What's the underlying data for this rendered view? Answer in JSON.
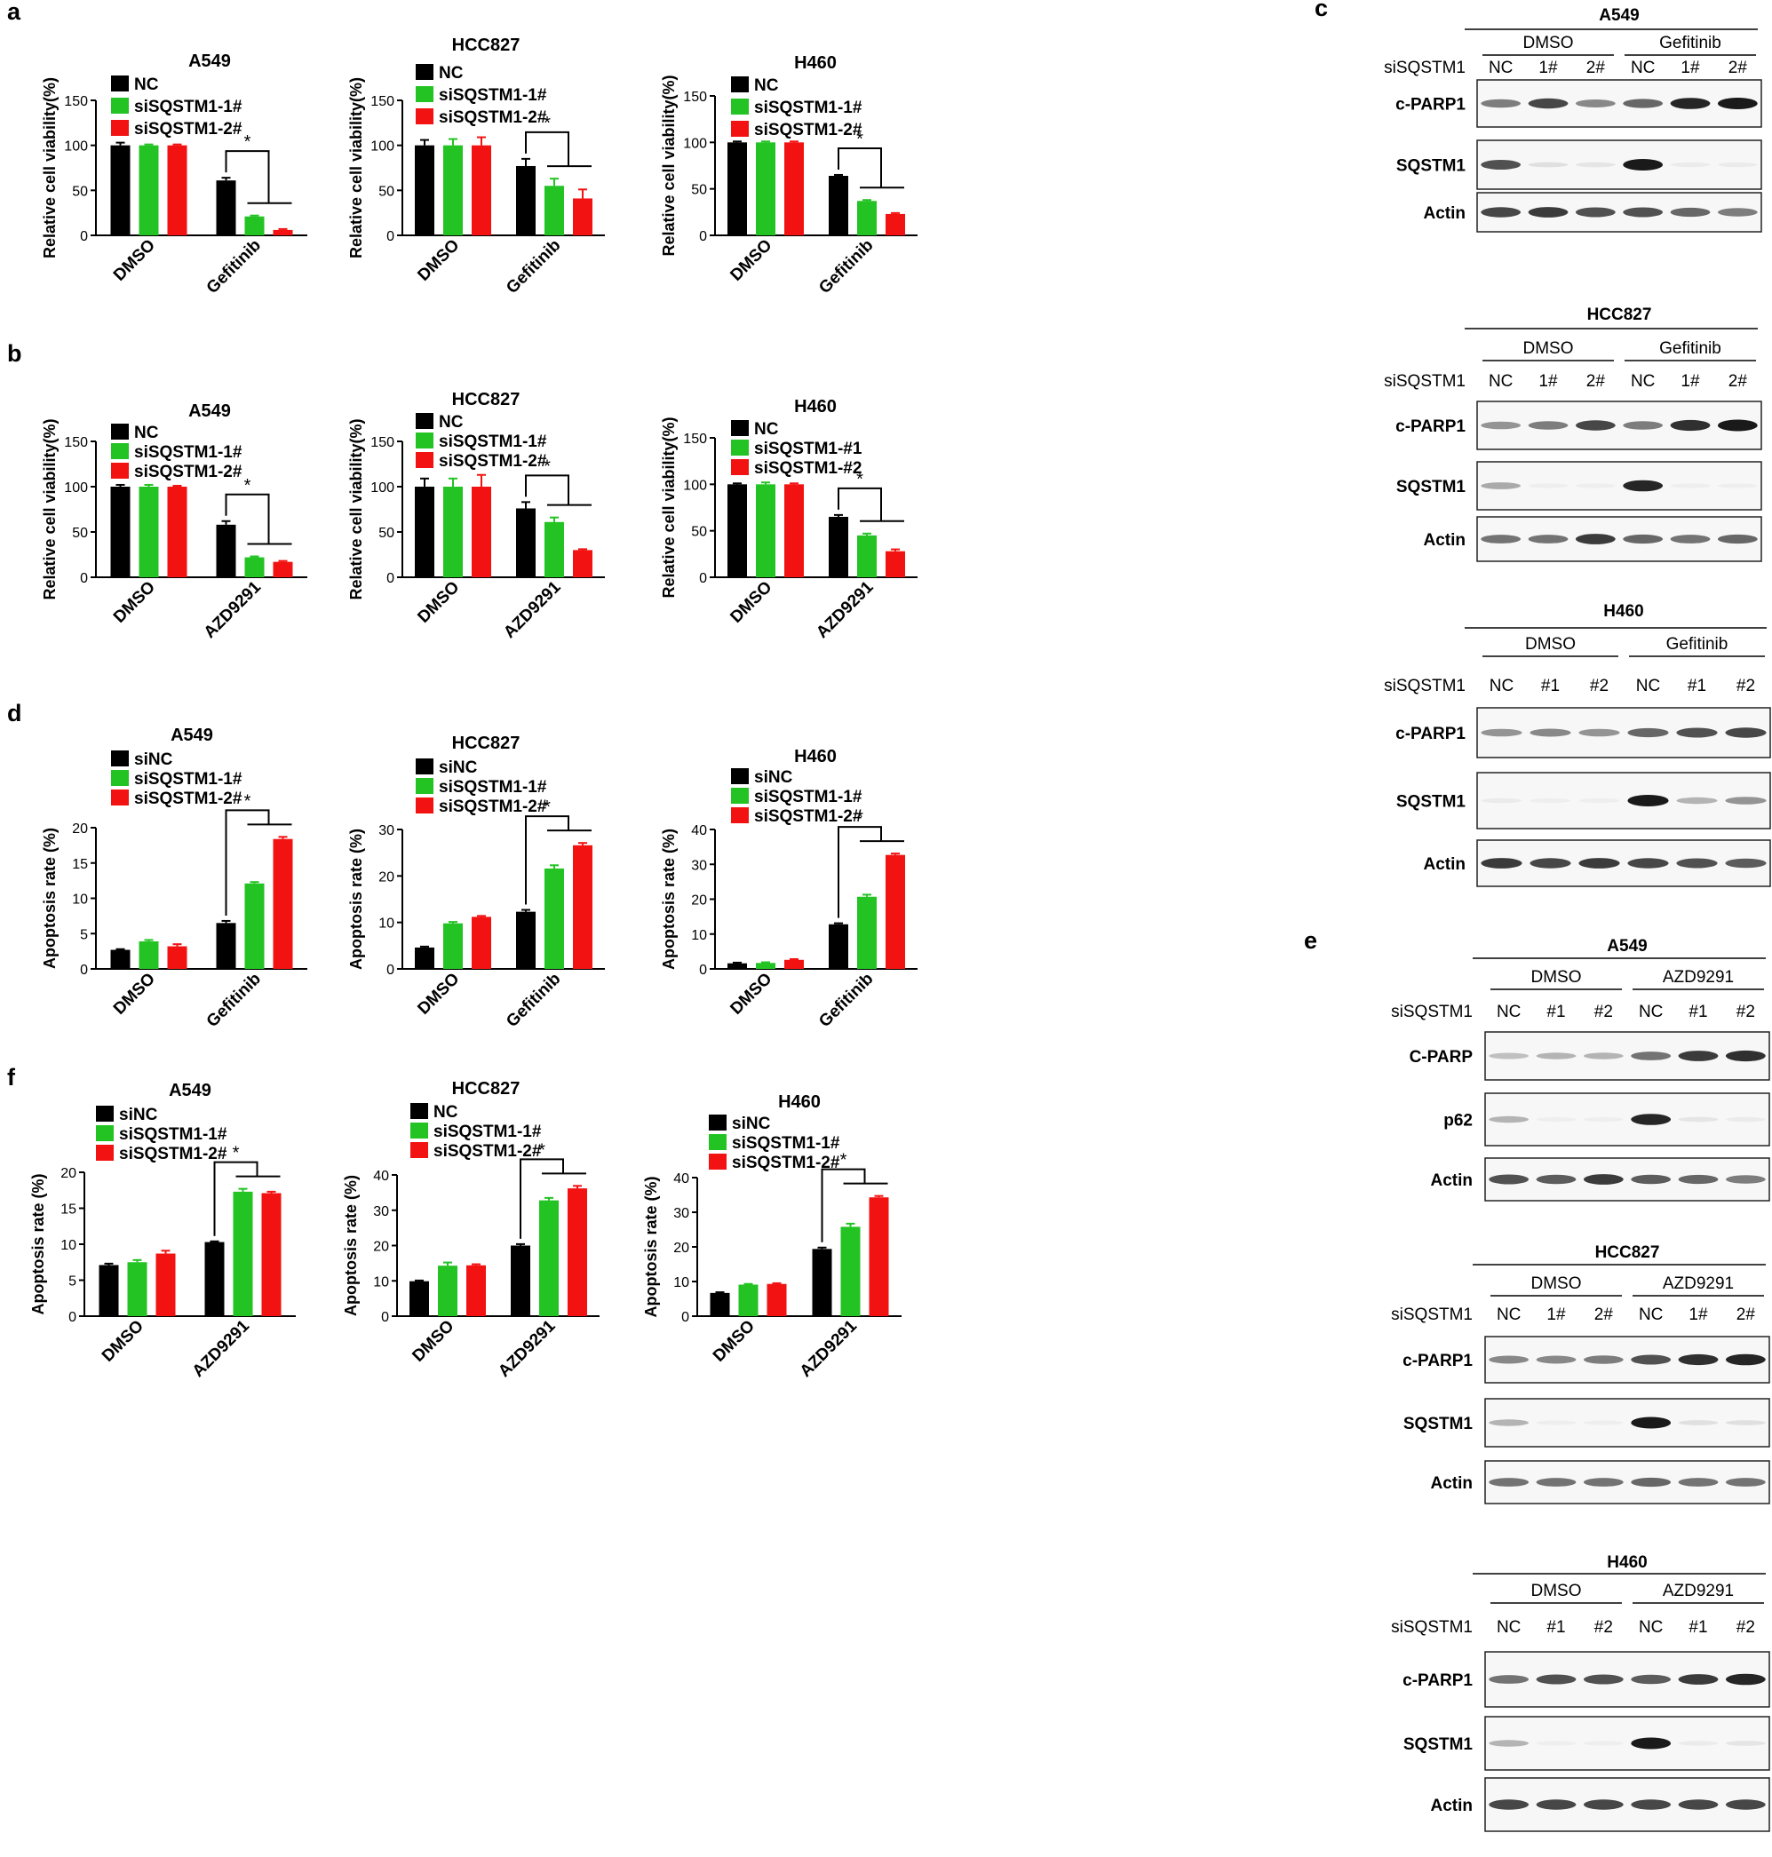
{
  "colors": {
    "black": "#000000",
    "green": "#22C322",
    "red": "#F21212",
    "blot_bg": "#F7F7F7",
    "blot_band": "#1A1A1A"
  },
  "chart_data": [
    {
      "panel": "a",
      "type": "bar",
      "title": "A549",
      "ylabel": "Relative cell viability(%)",
      "ylim": [
        0,
        150
      ],
      "yticks": [
        0,
        50,
        100,
        150
      ],
      "categories": [
        "DMSO",
        "Gefitinib"
      ],
      "series": [
        {
          "name": "NC",
          "values": [
            100,
            61
          ],
          "errors": [
            3,
            3
          ]
        },
        {
          "name": "siSQSTM1-1#",
          "values": [
            100,
            21
          ],
          "errors": [
            1,
            1
          ]
        },
        {
          "name": "siSQSTM1-2#",
          "values": [
            100,
            6
          ],
          "errors": [
            1,
            1
          ]
        }
      ],
      "annotation": "*"
    },
    {
      "panel": "",
      "type": "bar",
      "title": "HCC827",
      "ylabel": "Relative cell viability(%)",
      "ylim": [
        0,
        150
      ],
      "yticks": [
        0,
        50,
        100,
        150
      ],
      "categories": [
        "DMSO",
        "Gefitinib"
      ],
      "series": [
        {
          "name": "NC",
          "values": [
            100,
            77
          ],
          "errors": [
            6,
            8
          ]
        },
        {
          "name": "siSQSTM1-1#",
          "values": [
            100,
            55
          ],
          "errors": [
            7,
            8
          ]
        },
        {
          "name": "siSQSTM1-2#",
          "values": [
            100,
            41
          ],
          "errors": [
            9,
            10
          ]
        }
      ],
      "annotation": "*"
    },
    {
      "panel": "",
      "type": "bar",
      "title": "H460",
      "ylabel": "Relative cell viability(%)",
      "ylim": [
        0,
        150
      ],
      "yticks": [
        0,
        50,
        100,
        150
      ],
      "categories": [
        "DMSO",
        "Gefitinib"
      ],
      "series": [
        {
          "name": "NC",
          "values": [
            100,
            64
          ],
          "errors": [
            1,
            1
          ]
        },
        {
          "name": "siSQSTM1-1#",
          "values": [
            100,
            37
          ],
          "errors": [
            1,
            1
          ]
        },
        {
          "name": "siSQSTM1-2#",
          "values": [
            100,
            23
          ],
          "errors": [
            1,
            1
          ]
        }
      ],
      "annotation": "*"
    },
    {
      "panel": "b",
      "type": "bar",
      "title": "A549",
      "ylabel": "Relative cell viability(%)",
      "ylim": [
        0,
        150
      ],
      "yticks": [
        0,
        50,
        100,
        150
      ],
      "categories": [
        "DMSO",
        "AZD9291"
      ],
      "series": [
        {
          "name": "NC",
          "values": [
            100,
            58
          ],
          "errors": [
            2,
            4
          ]
        },
        {
          "name": "siSQSTM1-1#",
          "values": [
            100,
            22
          ],
          "errors": [
            2,
            1
          ]
        },
        {
          "name": "siSQSTM1-2#",
          "values": [
            100,
            17
          ],
          "errors": [
            1,
            1
          ]
        }
      ],
      "annotation": "*"
    },
    {
      "panel": "",
      "type": "bar",
      "title": "HCC827",
      "ylabel": "Relative cell viability(%)",
      "ylim": [
        0,
        150
      ],
      "yticks": [
        0,
        50,
        100,
        150
      ],
      "categories": [
        "DMSO",
        "AZD9291"
      ],
      "series": [
        {
          "name": "NC",
          "values": [
            100,
            76
          ],
          "errors": [
            9,
            7
          ]
        },
        {
          "name": "siSQSTM1-1#",
          "values": [
            100,
            61
          ],
          "errors": [
            9,
            5
          ]
        },
        {
          "name": "siSQSTM1-2#",
          "values": [
            100,
            30
          ],
          "errors": [
            13,
            1
          ]
        }
      ],
      "annotation": "*"
    },
    {
      "panel": "",
      "type": "bar",
      "title": "H460",
      "ylabel": "Relative cell viability(%)",
      "ylim": [
        0,
        150
      ],
      "yticks": [
        0,
        50,
        100,
        150
      ],
      "categories": [
        "DMSO",
        "AZD9291"
      ],
      "series": [
        {
          "name": "NC",
          "values": [
            100,
            65
          ],
          "errors": [
            1,
            2
          ]
        },
        {
          "name": "siSQSTM1-#1",
          "values": [
            100,
            45
          ],
          "errors": [
            2,
            2
          ]
        },
        {
          "name": "siSQSTM1-#2",
          "values": [
            100,
            28
          ],
          "errors": [
            1,
            2
          ]
        }
      ],
      "annotation": "*"
    },
    {
      "panel": "d",
      "type": "bar",
      "title": "A549",
      "ylabel": "Apoptosis rate (%)",
      "ylim": [
        0,
        20
      ],
      "yticks": [
        0,
        5,
        10,
        15,
        20
      ],
      "categories": [
        "DMSO",
        "Gefitinib"
      ],
      "series": [
        {
          "name": "siNC",
          "values": [
            2.7,
            6.5
          ],
          "errors": [
            0.1,
            0.3
          ]
        },
        {
          "name": "siSQSTM1-1#",
          "values": [
            3.9,
            12.1
          ],
          "errors": [
            0.2,
            0.2
          ]
        },
        {
          "name": "siSQSTM1-2#",
          "values": [
            3.2,
            18.4
          ],
          "errors": [
            0.3,
            0.3
          ]
        }
      ],
      "annotation": "*"
    },
    {
      "panel": "",
      "type": "bar",
      "title": "HCC827",
      "ylabel": "Apoptosis rate (%)",
      "ylim": [
        0,
        30
      ],
      "yticks": [
        0,
        10,
        20,
        30
      ],
      "categories": [
        "DMSO",
        "Gefitinib"
      ],
      "series": [
        {
          "name": "siNC",
          "values": [
            4.6,
            12.3
          ],
          "errors": [
            0.2,
            0.4
          ]
        },
        {
          "name": "siSQSTM1-1#",
          "values": [
            9.8,
            21.6
          ],
          "errors": [
            0.3,
            0.7
          ]
        },
        {
          "name": "siSQSTM1-2#",
          "values": [
            11.2,
            26.6
          ],
          "errors": [
            0.2,
            0.5
          ]
        }
      ],
      "annotation": "*"
    },
    {
      "panel": "",
      "type": "bar",
      "title": "H460",
      "ylabel": "Apoptosis rate (%)",
      "ylim": [
        0,
        40
      ],
      "yticks": [
        0,
        10,
        20,
        30,
        40
      ],
      "categories": [
        "DMSO",
        "Gefitinib"
      ],
      "series": [
        {
          "name": "siNC",
          "values": [
            1.6,
            12.8
          ],
          "errors": [
            0.2,
            0.3
          ]
        },
        {
          "name": "siSQSTM1-1#",
          "values": [
            1.7,
            20.7
          ],
          "errors": [
            0.2,
            0.6
          ]
        },
        {
          "name": "siSQSTM1-2#",
          "values": [
            2.6,
            32.7
          ],
          "errors": [
            0.2,
            0.4
          ]
        }
      ],
      "annotation": "*"
    },
    {
      "panel": "f",
      "type": "bar",
      "title": "A549",
      "ylabel": "Apoptosis rate (%)",
      "ylim": [
        0,
        20
      ],
      "yticks": [
        0,
        5,
        10,
        15,
        20
      ],
      "categories": [
        "DMSO",
        "AZD9291"
      ],
      "series": [
        {
          "name": "siNC",
          "values": [
            7.1,
            10.3
          ],
          "errors": [
            0.2,
            0.1
          ]
        },
        {
          "name": "siSQSTM1-1#",
          "values": [
            7.5,
            17.3
          ],
          "errors": [
            0.3,
            0.4
          ]
        },
        {
          "name": "siSQSTM1-2#",
          "values": [
            8.7,
            17.1
          ],
          "errors": [
            0.4,
            0.2
          ]
        }
      ],
      "annotation": "*"
    },
    {
      "panel": "",
      "type": "bar",
      "title": "HCC827",
      "ylabel": "Apoptosis rate (%)",
      "ylim": [
        0,
        40
      ],
      "yticks": [
        0,
        10,
        20,
        30,
        40
      ],
      "categories": [
        "DMSO",
        "AZD9291"
      ],
      "series": [
        {
          "name": "NC",
          "values": [
            9.9,
            20
          ],
          "errors": [
            0.2,
            0.4
          ]
        },
        {
          "name": "siSQSTM1-1#",
          "values": [
            14.3,
            32.8
          ],
          "errors": [
            0.9,
            0.7
          ]
        },
        {
          "name": "siSQSTM1-2#",
          "values": [
            14.4,
            36.2
          ],
          "errors": [
            0.3,
            0.7
          ]
        }
      ],
      "annotation": "*"
    },
    {
      "panel": "",
      "type": "bar",
      "title": "H460",
      "ylabel": "Apoptosis rate (%)",
      "ylim": [
        0,
        40
      ],
      "yticks": [
        0,
        10,
        20,
        30,
        40
      ],
      "categories": [
        "DMSO",
        "AZD9291"
      ],
      "series": [
        {
          "name": "siNC",
          "values": [
            6.7,
            19.4
          ],
          "errors": [
            0.2,
            0.4
          ]
        },
        {
          "name": "siSQSTM1-1#",
          "values": [
            9.1,
            25.8
          ],
          "errors": [
            0.2,
            0.9
          ]
        },
        {
          "name": "siSQSTM1-2#",
          "values": [
            9.3,
            34.3
          ],
          "errors": [
            0.2,
            0.4
          ]
        }
      ],
      "annotation": "*"
    }
  ],
  "blots": [
    {
      "panel": "c",
      "cell": "A549",
      "treatments": [
        "DMSO",
        "Gefitinib"
      ],
      "row_label": "siSQSTM1",
      "lanes": [
        "NC",
        "1#",
        "2#",
        "NC",
        "1#",
        "2#"
      ],
      "rows": [
        {
          "name": "c-PARP1",
          "intensity": [
            0.55,
            0.8,
            0.5,
            0.65,
            0.95,
            1.0
          ]
        },
        {
          "name": "SQSTM1",
          "intensity": [
            0.75,
            0.1,
            0.08,
            1.0,
            0.05,
            0.05
          ]
        },
        {
          "name": "Actin",
          "intensity": [
            0.8,
            0.85,
            0.75,
            0.75,
            0.65,
            0.55
          ]
        }
      ]
    },
    {
      "panel": "",
      "cell": "HCC827",
      "treatments": [
        "DMSO",
        "Gefitinib"
      ],
      "row_label": "siSQSTM1",
      "lanes": [
        "NC",
        "1#",
        "2#",
        "NC",
        "1#",
        "2#"
      ],
      "rows": [
        {
          "name": "c-PARP1",
          "intensity": [
            0.45,
            0.55,
            0.8,
            0.55,
            0.9,
            1.0
          ]
        },
        {
          "name": "SQSTM1",
          "intensity": [
            0.35,
            0.02,
            0.02,
            0.95,
            0.02,
            0.02
          ]
        },
        {
          "name": "Actin",
          "intensity": [
            0.6,
            0.6,
            0.85,
            0.65,
            0.6,
            0.65
          ]
        }
      ]
    },
    {
      "panel": "",
      "cell": "H460",
      "treatments": [
        "DMSO",
        "Gefitinib"
      ],
      "row_label": "siSQSTM1",
      "lanes": [
        "NC",
        "#1",
        "#2",
        "NC",
        "#1",
        "#2"
      ],
      "rows": [
        {
          "name": "c-PARP1",
          "intensity": [
            0.45,
            0.5,
            0.45,
            0.65,
            0.75,
            0.8
          ]
        },
        {
          "name": "SQSTM1",
          "intensity": [
            0.05,
            0.03,
            0.03,
            1.0,
            0.3,
            0.45
          ]
        },
        {
          "name": "Actin",
          "intensity": [
            0.85,
            0.8,
            0.85,
            0.8,
            0.75,
            0.7
          ]
        }
      ]
    },
    {
      "panel": "e",
      "cell": "A549",
      "treatments": [
        "DMSO",
        "AZD9291"
      ],
      "row_label": "siSQSTM1",
      "lanes": [
        "NC",
        "#1",
        "#2",
        "NC",
        "#1",
        "#2"
      ],
      "rows": [
        {
          "name": "C-PARP",
          "intensity": [
            0.25,
            0.3,
            0.3,
            0.6,
            0.85,
            0.9
          ]
        },
        {
          "name": "p62",
          "intensity": [
            0.3,
            0.02,
            0.02,
            0.95,
            0.08,
            0.05
          ]
        },
        {
          "name": "Actin",
          "intensity": [
            0.75,
            0.7,
            0.85,
            0.7,
            0.65,
            0.55
          ]
        }
      ]
    },
    {
      "panel": "",
      "cell": "HCC827",
      "treatments": [
        "DMSO",
        "AZD9291"
      ],
      "row_label": "siSQSTM1",
      "lanes": [
        "NC",
        "1#",
        "2#",
        "NC",
        "1#",
        "2#"
      ],
      "rows": [
        {
          "name": "c-PARP1",
          "intensity": [
            0.5,
            0.5,
            0.55,
            0.75,
            0.9,
            0.95
          ]
        },
        {
          "name": "SQSTM1",
          "intensity": [
            0.3,
            0.02,
            0.02,
            1.0,
            0.1,
            0.1
          ]
        },
        {
          "name": "Actin",
          "intensity": [
            0.6,
            0.6,
            0.6,
            0.65,
            0.6,
            0.6
          ]
        }
      ]
    },
    {
      "panel": "",
      "cell": "H460",
      "treatments": [
        "DMSO",
        "AZD9291"
      ],
      "row_label": "siSQSTM1",
      "lanes": [
        "NC",
        "#1",
        "#2",
        "NC",
        "#1",
        "#2"
      ],
      "rows": [
        {
          "name": "c-PARP1",
          "intensity": [
            0.6,
            0.75,
            0.75,
            0.7,
            0.85,
            0.95
          ]
        },
        {
          "name": "SQSTM1",
          "intensity": [
            0.3,
            0.02,
            0.02,
            1.0,
            0.05,
            0.08
          ]
        },
        {
          "name": "Actin",
          "intensity": [
            0.8,
            0.8,
            0.8,
            0.8,
            0.8,
            0.8
          ]
        }
      ]
    }
  ]
}
